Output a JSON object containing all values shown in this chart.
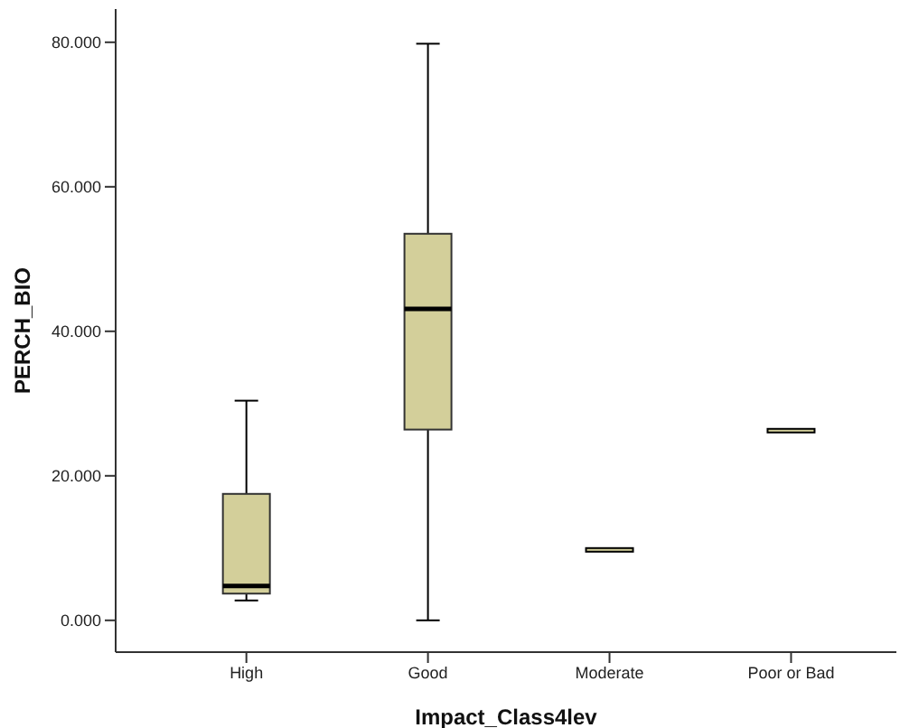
{
  "chart_data": {
    "type": "box",
    "xlabel": "Impact_Class4lev",
    "ylabel": "PERCH_BIO",
    "categories": [
      "High",
      "Good",
      "Moderate",
      "Poor or Bad"
    ],
    "color": "#d3cf9a",
    "boxes": [
      {
        "low": 2.75,
        "q1": 3.7,
        "median": 4.75,
        "q3": 17.5,
        "high": 30.4
      },
      {
        "low": 0,
        "q1": 26.4,
        "median": 43.1,
        "q3": 53.5,
        "high": 79.8
      },
      {
        "low": 9.75,
        "q1": 9.75,
        "median": 9.75,
        "q3": 9.75,
        "high": 9.75
      },
      {
        "low": 26.25,
        "q1": 26.25,
        "median": 26.25,
        "q3": 26.25,
        "high": 26.25
      }
    ],
    "ylim": [
      -4.4,
      84.6
    ],
    "yticks": [
      {
        "value": 0,
        "label": "0.000"
      },
      {
        "value": 20,
        "label": "20.000"
      },
      {
        "value": 40,
        "label": "40.000"
      },
      {
        "value": 60,
        "label": "60.000"
      },
      {
        "value": 80,
        "label": "80.000"
      }
    ],
    "grid": false
  }
}
